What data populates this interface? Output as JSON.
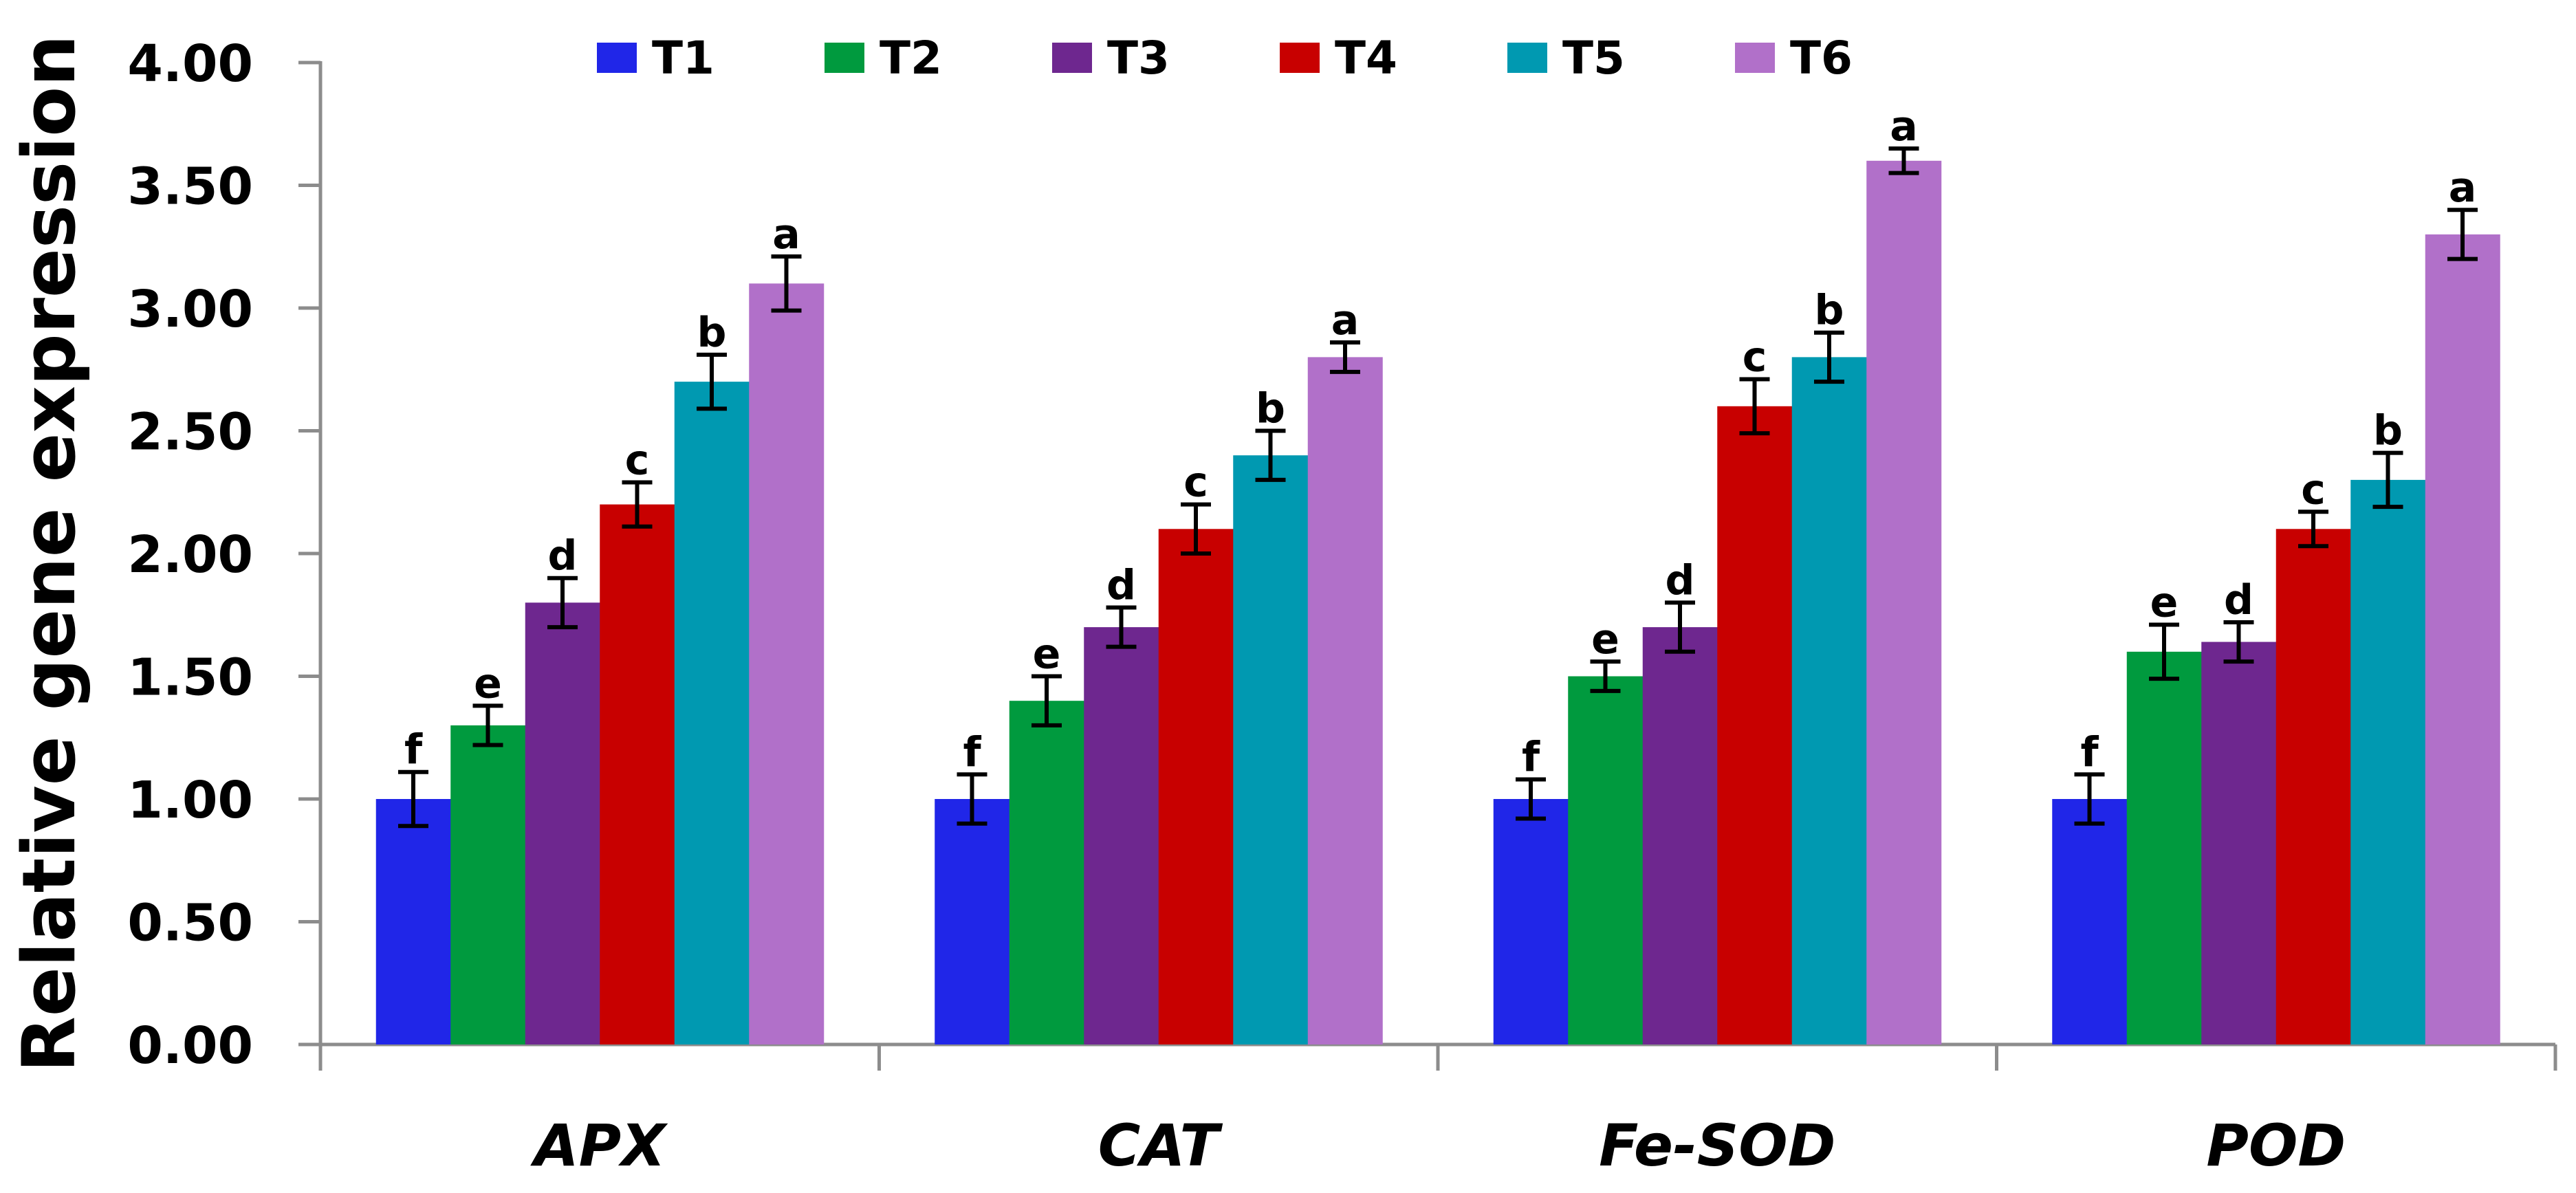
{
  "chart_data": {
    "type": "bar",
    "title": "",
    "xlabel": "",
    "ylabel": "Relative gene expression",
    "ylim": [
      0,
      4
    ],
    "yticks": [
      "0.00",
      "0.50",
      "1.00",
      "1.50",
      "2.00",
      "2.50",
      "3.00",
      "3.50",
      "4.00"
    ],
    "categories": [
      "APX",
      "CAT",
      "Fe-SOD",
      "POD"
    ],
    "legend_position": "top",
    "grid": false,
    "series": [
      {
        "name": "T1",
        "color": "#2026E8",
        "values": [
          1.0,
          1.0,
          1.0,
          1.0
        ],
        "errors": [
          0.11,
          0.1,
          0.08,
          0.1
        ],
        "letters": [
          "f",
          "f",
          "f",
          "f"
        ]
      },
      {
        "name": "T2",
        "color": "#009A3E",
        "values": [
          1.3,
          1.4,
          1.5,
          1.6
        ],
        "errors": [
          0.08,
          0.1,
          0.06,
          0.11
        ],
        "letters": [
          "e",
          "e",
          "e",
          "e"
        ]
      },
      {
        "name": "T3",
        "color": "#6E278F",
        "values": [
          1.8,
          1.7,
          1.7,
          1.64
        ],
        "errors": [
          0.1,
          0.08,
          0.1,
          0.08
        ],
        "letters": [
          "d",
          "d",
          "d",
          "d"
        ]
      },
      {
        "name": "T4",
        "color": "#C80000",
        "values": [
          2.2,
          2.1,
          2.6,
          2.1
        ],
        "errors": [
          0.09,
          0.1,
          0.11,
          0.07
        ],
        "letters": [
          "c",
          "c",
          "c",
          "c"
        ]
      },
      {
        "name": "T5",
        "color": "#0099B1",
        "values": [
          2.7,
          2.4,
          2.8,
          2.3
        ],
        "errors": [
          0.11,
          0.1,
          0.1,
          0.11
        ],
        "letters": [
          "b",
          "b",
          "b",
          "b"
        ]
      },
      {
        "name": "T6",
        "color": "#B170C9",
        "values": [
          3.1,
          2.8,
          3.6,
          3.3
        ],
        "errors": [
          0.11,
          0.06,
          0.05,
          0.1
        ],
        "letters": [
          "a",
          "a",
          "a",
          "a"
        ]
      }
    ]
  }
}
